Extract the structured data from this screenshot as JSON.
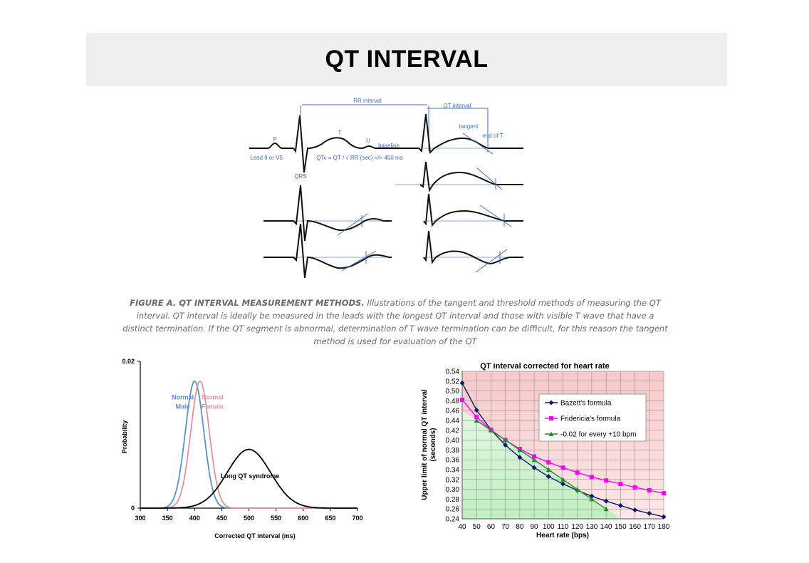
{
  "header": {
    "title": "QT INTERVAL"
  },
  "ecg_figure": {
    "rr_interval": "RR interval",
    "qt_interval": "QT interval",
    "tangent": "tangent",
    "end_of_t": "end of T",
    "p": "P",
    "t": "T",
    "u": "U",
    "baseline": "baseline",
    "lead": "Lead II or V5",
    "formula": "QTc = QT / √ RR (sec) </> 450 ms",
    "qrs": "QRS"
  },
  "caption": {
    "heading": "FIGURE A. QT INTERVAL MEASUREMENT METHODS.",
    "body": " Illustrations of the tangent and threshold methods of measuring the QT interval. QT interval is ideally be measured in the leads with the longest QT interval and those with visible T wave that have a distinct termination. If the QT segment is abnormal, determination of T wave termination can be difficult, for this reason the tangent method is used for evaluation of the QT"
  },
  "colors": {
    "ecg_blue": "#3d6fc4",
    "male": "#5b8fd6",
    "female": "#e0939a",
    "long_qt": "#000000",
    "bazett": "#0b1a6b",
    "fridericia": "#ff00ff",
    "linear": "#1f8f1f"
  },
  "chart_data": [
    {
      "type": "line",
      "title": "",
      "xlabel": "Corrected QT interval (ms)",
      "ylabel": "Probability",
      "xlim": [
        300,
        700
      ],
      "ylim": [
        0,
        0.02
      ],
      "x_ticks": [
        "300",
        "350",
        "400",
        "450",
        "500",
        "550",
        "600",
        "650",
        "700"
      ],
      "y_ticks": [
        "0",
        "0.02"
      ],
      "series": [
        {
          "name": "Normal Male",
          "label_lines": [
            "Normal",
            "Male"
          ],
          "mean": 400,
          "sd": 17,
          "peak": 0.0173,
          "color": "#5b8fd6"
        },
        {
          "name": "Normal Female",
          "label_lines": [
            "Normal",
            "Female"
          ],
          "mean": 410,
          "sd": 17,
          "peak": 0.0173,
          "color": "#e0939a"
        },
        {
          "name": "Long QT syndrome",
          "label_lines": [
            "Long QT syndrome"
          ],
          "mean": 500,
          "sd": 40,
          "peak": 0.008,
          "color": "#000000"
        }
      ]
    },
    {
      "type": "line",
      "title": "QT  interval corrected for heart rate",
      "xlabel": "Heart rate (bps)",
      "ylabel_lines": [
        "Upper limit of normal QT interval",
        "(seconds)"
      ],
      "xlim": [
        40,
        180
      ],
      "ylim": [
        0.24,
        0.54
      ],
      "x_ticks": [
        "40",
        "50",
        "60",
        "70",
        "80",
        "90",
        "100",
        "110",
        "120",
        "130",
        "140",
        "150",
        "160",
        "170",
        "180"
      ],
      "y_ticks": [
        "0.24",
        "0.26",
        "0.28",
        "0.30",
        "0.32",
        "0.34",
        "0.36",
        "0.38",
        "0.40",
        "0.42",
        "0.44",
        "0.46",
        "0.48",
        "0.50",
        "0.52",
        "0.54"
      ],
      "legend_position": "top-right",
      "series": [
        {
          "name": "Bazett's formula",
          "marker": "diamond",
          "color": "#0b1a6b",
          "x": [
            40,
            50,
            60,
            70,
            80,
            90,
            100,
            110,
            120,
            130,
            140,
            150,
            160,
            170,
            180
          ],
          "y": [
            0.516,
            0.461,
            0.421,
            0.39,
            0.365,
            0.344,
            0.326,
            0.311,
            0.298,
            0.286,
            0.276,
            0.267,
            0.258,
            0.251,
            0.244
          ]
        },
        {
          "name": "Fridericia's formula",
          "marker": "square",
          "color": "#ff00ff",
          "x": [
            40,
            50,
            60,
            70,
            80,
            90,
            100,
            110,
            120,
            130,
            140,
            150,
            160,
            170,
            180
          ],
          "y": [
            0.482,
            0.447,
            0.421,
            0.4,
            0.382,
            0.367,
            0.355,
            0.344,
            0.334,
            0.325,
            0.318,
            0.311,
            0.304,
            0.298,
            0.292
          ]
        },
        {
          "name": "-0.02 for every +10 bpm",
          "marker": "triangle",
          "color": "#1f8f1f",
          "x": [
            50,
            60,
            70,
            80,
            90,
            100,
            110,
            120,
            130,
            140
          ],
          "y": [
            0.44,
            0.42,
            0.4,
            0.38,
            0.36,
            0.34,
            0.32,
            0.3,
            0.28,
            0.26
          ]
        }
      ]
    }
  ]
}
